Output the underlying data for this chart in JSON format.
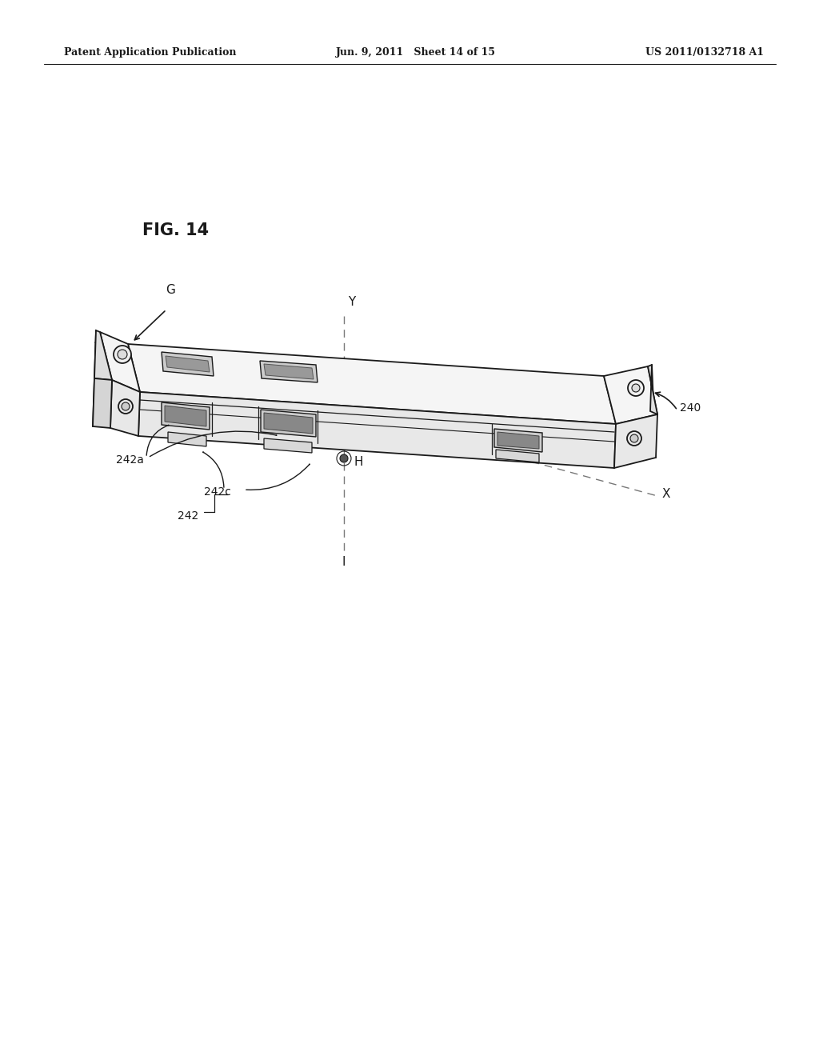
{
  "bg_color": "#ffffff",
  "header_left": "Patent Application Publication",
  "header_mid": "Jun. 9, 2011   Sheet 14 of 15",
  "header_right": "US 2011/0132718 A1",
  "fig_label": "FIG. 14",
  "line_color": "#1a1a1a",
  "dashed_color": "#777777",
  "face_top": "#f5f5f5",
  "face_front": "#e8e8e8",
  "face_side": "#dedede",
  "slot_dark": "#aaaaaa",
  "slot_inner": "#888888"
}
